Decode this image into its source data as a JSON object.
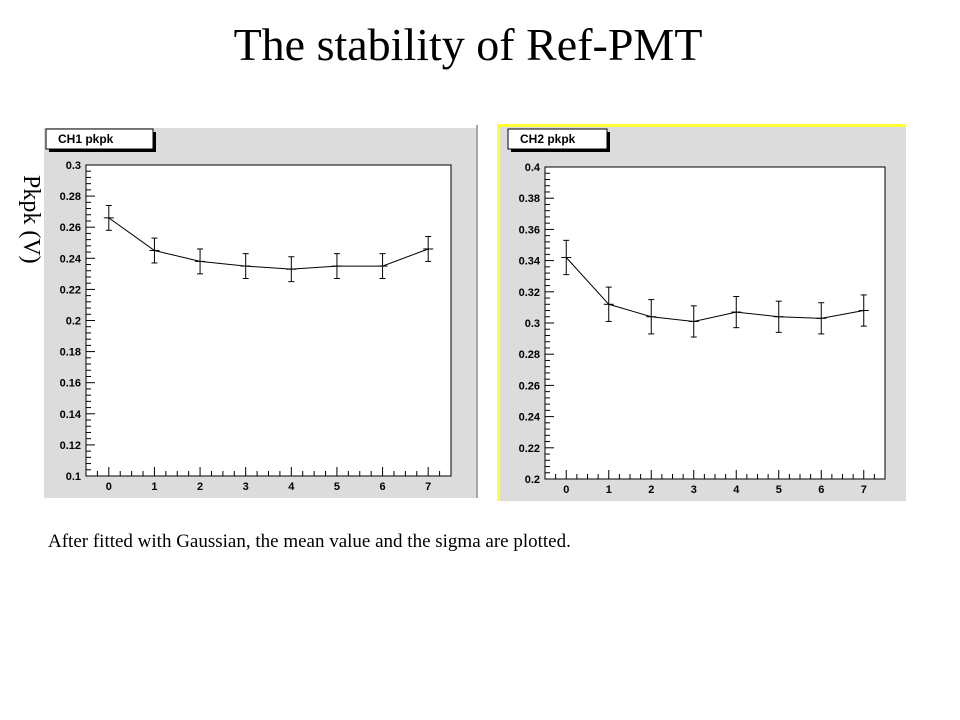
{
  "page": {
    "title": "The stability of Ref-PMT",
    "ylabel": "Pkpk (V)",
    "caption": "After fitted with Gaussian, the mean value and the sigma are plotted."
  },
  "chart_data": [
    {
      "type": "line",
      "title": "CH1 pkpk",
      "x": [
        0,
        1,
        2,
        3,
        4,
        5,
        6,
        7
      ],
      "values": [
        0.266,
        0.245,
        0.238,
        0.235,
        0.233,
        0.235,
        0.235,
        0.246
      ],
      "errors": [
        0.008,
        0.008,
        0.008,
        0.008,
        0.008,
        0.008,
        0.008,
        0.008
      ],
      "xlim": [
        -0.5,
        7.5
      ],
      "ylim": [
        0.1,
        0.3
      ],
      "xticks": [
        "0",
        "1",
        "2",
        "3",
        "4",
        "5",
        "6",
        "7"
      ],
      "yticks": [
        "0.1",
        "0.12",
        "0.14",
        "0.16",
        "0.18",
        "0.2",
        "0.22",
        "0.24",
        "0.26",
        "0.28",
        "0.3"
      ],
      "grid": false
    },
    {
      "type": "line",
      "title": "CH2 pkpk",
      "x": [
        0,
        1,
        2,
        3,
        4,
        5,
        6,
        7
      ],
      "values": [
        0.342,
        0.312,
        0.304,
        0.301,
        0.307,
        0.304,
        0.303,
        0.308
      ],
      "errors": [
        0.011,
        0.011,
        0.011,
        0.01,
        0.01,
        0.01,
        0.01,
        0.01
      ],
      "xlim": [
        -0.5,
        7.5
      ],
      "ylim": [
        0.2,
        0.4
      ],
      "xticks": [
        "0",
        "1",
        "2",
        "3",
        "4",
        "5",
        "6",
        "7"
      ],
      "yticks": [
        "0.2",
        "0.22",
        "0.24",
        "0.26",
        "0.28",
        "0.3",
        "0.32",
        "0.34",
        "0.36",
        "0.38",
        "0.4"
      ],
      "grid": false
    }
  ]
}
